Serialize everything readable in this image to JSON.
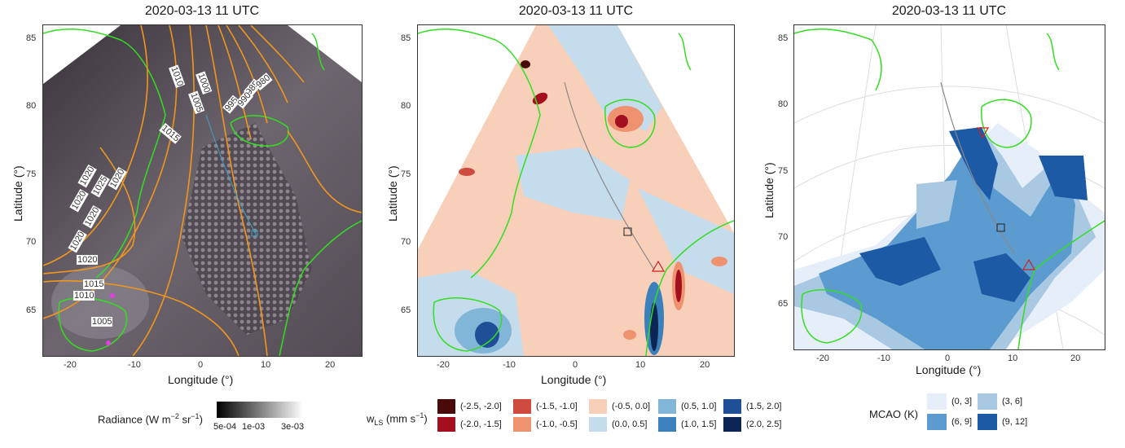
{
  "panels": [
    {
      "title": "2020-03-13 11 UTC",
      "xlabel": "Longitude (°)",
      "ylabel": "Latitude (°)",
      "xticks": [
        "-20",
        "-10",
        "0",
        "10",
        "20"
      ],
      "yticks": [
        "85",
        "80",
        "75",
        "70",
        "65"
      ]
    },
    {
      "title": "2020-03-13 11 UTC",
      "xlabel": "Longitude (°)",
      "ylabel": "Latitude (°)",
      "xticks": [
        "-20",
        "-10",
        "0",
        "10",
        "20"
      ],
      "yticks": [
        "85",
        "80",
        "75",
        "70",
        "65"
      ]
    },
    {
      "title": "2020-03-13 11 UTC",
      "xlabel": "Longitude (°)",
      "ylabel": "Latitude (°)",
      "xticks": [
        "-20",
        "-10",
        "0",
        "10",
        "20"
      ],
      "yticks": [
        "85",
        "80",
        "75",
        "70",
        "65"
      ]
    }
  ],
  "isobar_labels": [
    "1010",
    "1000",
    "1005",
    "995",
    "985",
    "980",
    "990",
    "1015",
    "1020",
    "1020",
    "1020",
    "1025",
    "1020",
    "1020",
    "1020",
    "1015",
    "1010",
    "1005"
  ],
  "legend_radiance": {
    "title_main": "Radiance (W m",
    "sup1": "−2",
    "mid": " sr",
    "sup2": "−1",
    "end": ")",
    "ticks": [
      "5e-04",
      "1e-03",
      "3e-03"
    ]
  },
  "legend_wls": {
    "title_main": "w",
    "sub": "LS",
    "title_end": " (mm s",
    "sup": "−1",
    "close": ")",
    "items": [
      {
        "label": "(-2.5, -2.0]",
        "color": "#4a0a0a"
      },
      {
        "label": "(-2.0, -1.5]",
        "color": "#a30f1e"
      },
      {
        "label": "(-1.5, -1.0]",
        "color": "#cf4a3f"
      },
      {
        "label": "(-1.0, -0.5]",
        "color": "#ee9270"
      },
      {
        "label": "(-0.5, 0.0]",
        "color": "#f8cfb8"
      },
      {
        "label": "(0.0, 0.5]",
        "color": "#c5dcec"
      },
      {
        "label": "(0.5, 1.0]",
        "color": "#82b6d8"
      },
      {
        "label": "(1.0, 1.5]",
        "color": "#3b80ba"
      },
      {
        "label": "(1.5, 2.0]",
        "color": "#1f4f97"
      },
      {
        "label": "(2.0, 2.5]",
        "color": "#0c2554"
      }
    ]
  },
  "legend_mcao": {
    "title": "MCAO (K)",
    "items": [
      {
        "label": "(0, 3]",
        "color": "#e6eef9"
      },
      {
        "label": "(3, 6]",
        "color": "#a9c8e2"
      },
      {
        "label": "(6, 9]",
        "color": "#5b9bcf"
      },
      {
        "label": "(9, 12]",
        "color": "#1c5aa6"
      }
    ]
  },
  "colors": {
    "coast": "#33dd22",
    "isobar": "#f0961e",
    "track": "#888888",
    "marker": "#cc2222"
  }
}
